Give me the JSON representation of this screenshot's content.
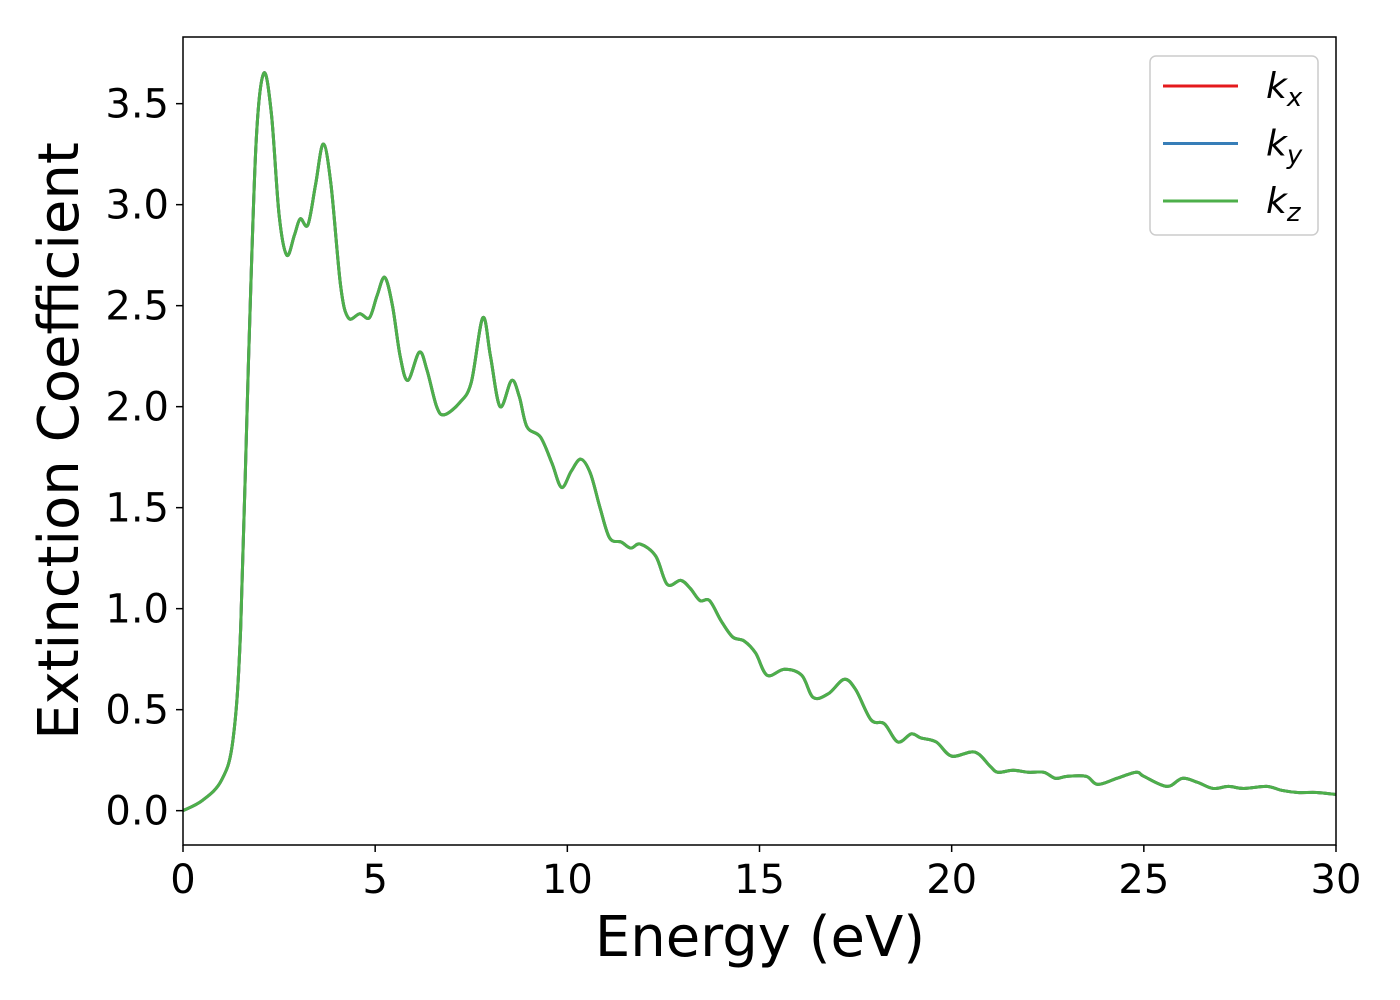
{
  "chart_data": {
    "type": "line",
    "xlabel": "Energy (eV)",
    "ylabel": "Extinction Coefficient",
    "x": [
      0,
      0.5,
      1.0,
      1.3,
      1.5,
      1.7,
      1.9,
      2.1,
      2.3,
      2.5,
      2.7,
      2.9,
      3.05,
      3.25,
      3.45,
      3.65,
      3.85,
      4.1,
      4.3,
      4.6,
      4.85,
      5.05,
      5.25,
      5.45,
      5.65,
      5.85,
      6.15,
      6.35,
      6.6,
      6.8,
      7.2,
      7.5,
      7.8,
      8.0,
      8.25,
      8.55,
      8.75,
      8.95,
      9.3,
      9.6,
      9.85,
      10.1,
      10.35,
      10.6,
      10.85,
      11.1,
      11.4,
      11.65,
      11.9,
      12.3,
      12.6,
      12.95,
      13.2,
      13.45,
      13.7,
      14.0,
      14.3,
      14.6,
      14.9,
      15.2,
      15.65,
      16.1,
      16.4,
      16.8,
      17.2,
      17.5,
      17.9,
      18.25,
      18.6,
      18.95,
      19.2,
      19.6,
      20.0,
      20.6,
      21.0,
      21.2,
      21.6,
      22.0,
      22.4,
      22.7,
      23.0,
      23.5,
      23.8,
      24.3,
      24.8,
      25.0,
      25.6,
      26.0,
      26.4,
      26.8,
      27.2,
      27.6,
      28.2,
      28.6,
      29.0,
      29.5,
      30.0
    ],
    "series": [
      {
        "name": "kx",
        "color": "#e41a1c",
        "values": [
          0.0,
          0.05,
          0.15,
          0.35,
          0.9,
          2.2,
          3.3,
          3.65,
          3.45,
          2.95,
          2.75,
          2.85,
          2.93,
          2.9,
          3.1,
          3.3,
          3.1,
          2.6,
          2.44,
          2.46,
          2.44,
          2.55,
          2.64,
          2.5,
          2.25,
          2.13,
          2.27,
          2.18,
          2.0,
          1.96,
          2.02,
          2.12,
          2.44,
          2.25,
          2.0,
          2.13,
          2.05,
          1.9,
          1.85,
          1.72,
          1.6,
          1.68,
          1.74,
          1.67,
          1.5,
          1.35,
          1.33,
          1.3,
          1.32,
          1.26,
          1.12,
          1.14,
          1.1,
          1.04,
          1.04,
          0.94,
          0.86,
          0.84,
          0.78,
          0.67,
          0.7,
          0.67,
          0.56,
          0.58,
          0.65,
          0.6,
          0.45,
          0.43,
          0.34,
          0.38,
          0.36,
          0.34,
          0.27,
          0.29,
          0.22,
          0.19,
          0.2,
          0.19,
          0.19,
          0.16,
          0.17,
          0.17,
          0.13,
          0.16,
          0.19,
          0.17,
          0.12,
          0.16,
          0.14,
          0.11,
          0.12,
          0.11,
          0.12,
          0.1,
          0.09,
          0.09,
          0.08
        ]
      },
      {
        "name": "ky",
        "color": "#377eb8",
        "values": [
          0.0,
          0.05,
          0.15,
          0.35,
          0.9,
          2.2,
          3.3,
          3.65,
          3.45,
          2.95,
          2.75,
          2.85,
          2.93,
          2.9,
          3.1,
          3.3,
          3.1,
          2.6,
          2.44,
          2.46,
          2.44,
          2.55,
          2.64,
          2.5,
          2.25,
          2.13,
          2.27,
          2.18,
          2.0,
          1.96,
          2.02,
          2.12,
          2.44,
          2.25,
          2.0,
          2.13,
          2.05,
          1.9,
          1.85,
          1.72,
          1.6,
          1.68,
          1.74,
          1.67,
          1.5,
          1.35,
          1.33,
          1.3,
          1.32,
          1.26,
          1.12,
          1.14,
          1.1,
          1.04,
          1.04,
          0.94,
          0.86,
          0.84,
          0.78,
          0.67,
          0.7,
          0.67,
          0.56,
          0.58,
          0.65,
          0.6,
          0.45,
          0.43,
          0.34,
          0.38,
          0.36,
          0.34,
          0.27,
          0.29,
          0.22,
          0.19,
          0.2,
          0.19,
          0.19,
          0.16,
          0.17,
          0.17,
          0.13,
          0.16,
          0.19,
          0.17,
          0.12,
          0.16,
          0.14,
          0.11,
          0.12,
          0.11,
          0.12,
          0.1,
          0.09,
          0.09,
          0.08
        ]
      },
      {
        "name": "kz",
        "color": "#4daf4a",
        "values": [
          0.0,
          0.05,
          0.15,
          0.35,
          0.9,
          2.2,
          3.3,
          3.65,
          3.45,
          2.95,
          2.75,
          2.85,
          2.93,
          2.9,
          3.1,
          3.3,
          3.1,
          2.6,
          2.44,
          2.46,
          2.44,
          2.55,
          2.64,
          2.5,
          2.25,
          2.13,
          2.27,
          2.18,
          2.0,
          1.96,
          2.02,
          2.12,
          2.44,
          2.25,
          2.0,
          2.13,
          2.05,
          1.9,
          1.85,
          1.72,
          1.6,
          1.68,
          1.74,
          1.67,
          1.5,
          1.35,
          1.33,
          1.3,
          1.32,
          1.26,
          1.12,
          1.14,
          1.1,
          1.04,
          1.04,
          0.94,
          0.86,
          0.84,
          0.78,
          0.67,
          0.7,
          0.67,
          0.56,
          0.58,
          0.65,
          0.6,
          0.45,
          0.43,
          0.34,
          0.38,
          0.36,
          0.34,
          0.27,
          0.29,
          0.22,
          0.19,
          0.2,
          0.19,
          0.19,
          0.16,
          0.17,
          0.17,
          0.13,
          0.16,
          0.19,
          0.17,
          0.12,
          0.16,
          0.14,
          0.11,
          0.12,
          0.11,
          0.12,
          0.1,
          0.09,
          0.09,
          0.08
        ]
      }
    ],
    "xlim": [
      0,
      30
    ],
    "xticks": [
      0,
      5,
      10,
      15,
      20,
      25,
      30
    ],
    "ylim": [
      -0.17,
      3.83
    ],
    "yticks": [
      {
        "value": 0,
        "label": "0.0"
      },
      0.5,
      {
        "value": 1,
        "label": "1.0"
      },
      1.5,
      {
        "value": 2,
        "label": "2.0"
      },
      2.5,
      {
        "value": 3,
        "label": "3.0"
      },
      3.5
    ],
    "grid": false,
    "legend": "upper right"
  }
}
